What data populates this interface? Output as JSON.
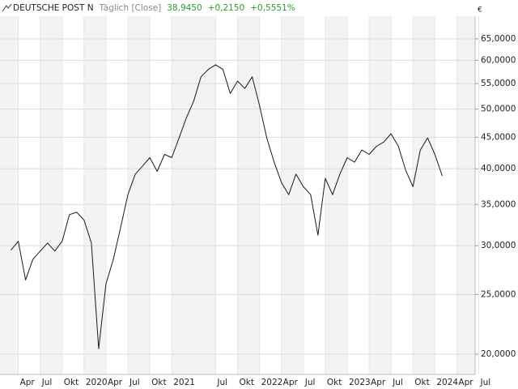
{
  "chart_data": {
    "type": "line",
    "title": "DEUTSCHE POST N",
    "subtitle": "Täglich [Close]",
    "last_price": "38,9450",
    "change": "+0,2150",
    "change_percent": "+0,5551%",
    "currency": "€",
    "log_scale": true,
    "grid": true,
    "x": [
      "2019-03",
      "2019-04",
      "2019-05",
      "2019-06",
      "2019-07",
      "2019-08",
      "2019-09",
      "2019-10",
      "2019-11",
      "2019-12",
      "2020-01",
      "2020-02",
      "2020-03",
      "2020-04",
      "2020-05",
      "2020-06",
      "2020-07",
      "2020-08",
      "2020-09",
      "2020-10",
      "2020-11",
      "2020-12",
      "2021-01",
      "2021-02",
      "2021-03",
      "2021-04",
      "2021-05",
      "2021-06",
      "2021-07",
      "2021-08",
      "2021-09",
      "2021-10",
      "2021-11",
      "2021-12",
      "2022-01",
      "2022-02",
      "2022-03",
      "2022-04",
      "2022-05",
      "2022-06",
      "2022-07",
      "2022-08",
      "2022-09",
      "2022-10",
      "2022-11",
      "2022-12",
      "2023-01",
      "2023-02",
      "2023-03",
      "2023-04",
      "2023-05",
      "2023-06",
      "2023-07",
      "2023-08",
      "2023-09",
      "2023-10",
      "2023-11",
      "2023-12",
      "2024-01",
      "2024-02"
    ],
    "series": [
      {
        "name": "DEUTSCHE POST N",
        "color": "#1a1a1a",
        "values": [
          29500,
          30500,
          26400,
          28500,
          29400,
          30300,
          29400,
          30500,
          33700,
          34000,
          33000,
          30300,
          20400,
          26000,
          28500,
          32100,
          36300,
          39200,
          40400,
          41700,
          39600,
          42200,
          41700,
          44900,
          48400,
          51500,
          56400,
          58000,
          59000,
          58000,
          53000,
          55500,
          54000,
          56400,
          50700,
          44900,
          41000,
          38000,
          36300,
          39200,
          37400,
          36300,
          31200,
          38600,
          36300,
          39200,
          41700,
          41000,
          42900,
          42200,
          43500,
          44200,
          45600,
          43500,
          39800,
          37400,
          42900,
          44900,
          42200,
          38945
        ]
      }
    ],
    "xlim": [
      "2019-02",
      "2024-07"
    ],
    "xticks": [
      {
        "value": "2019-04",
        "label": "Apr"
      },
      {
        "value": "2019-07",
        "label": "Jul"
      },
      {
        "value": "2019-10",
        "label": "Okt"
      },
      {
        "value": "2020-01",
        "label": "2020"
      },
      {
        "value": "2020-04",
        "label": "Apr"
      },
      {
        "value": "2020-07",
        "label": "Jul"
      },
      {
        "value": "2020-10",
        "label": "Okt"
      },
      {
        "value": "2021-01",
        "label": "2021"
      },
      {
        "value": "2021-07",
        "label": "Jul"
      },
      {
        "value": "2021-10",
        "label": "Okt"
      },
      {
        "value": "2022-01",
        "label": "2022"
      },
      {
        "value": "2022-04",
        "label": "Apr"
      },
      {
        "value": "2022-07",
        "label": "Jul"
      },
      {
        "value": "2022-10",
        "label": "Okt"
      },
      {
        "value": "2023-01",
        "label": "2023"
      },
      {
        "value": "2023-04",
        "label": "Apr"
      },
      {
        "value": "2023-07",
        "label": "Jul"
      },
      {
        "value": "2023-10",
        "label": "Okt"
      },
      {
        "value": "2024-01",
        "label": "2024"
      },
      {
        "value": "2024-04",
        "label": "Apr"
      },
      {
        "value": "2024-07",
        "label": "Jul"
      }
    ],
    "ylim": [
      18540,
      70750
    ],
    "yticks": [
      {
        "value": 20000,
        "label": "20,0000"
      },
      {
        "value": 25000,
        "label": "25,0000"
      },
      {
        "value": 30000,
        "label": "30,0000"
      },
      {
        "value": 35000,
        "label": "35,0000"
      },
      {
        "value": 40000,
        "label": "40,0000"
      },
      {
        "value": 45000,
        "label": "45,0000"
      },
      {
        "value": 50000,
        "label": "50,0000"
      },
      {
        "value": 55000,
        "label": "55,0000"
      },
      {
        "value": 60000,
        "label": "60,0000"
      },
      {
        "value": 65000,
        "label": "65,0000"
      }
    ]
  }
}
